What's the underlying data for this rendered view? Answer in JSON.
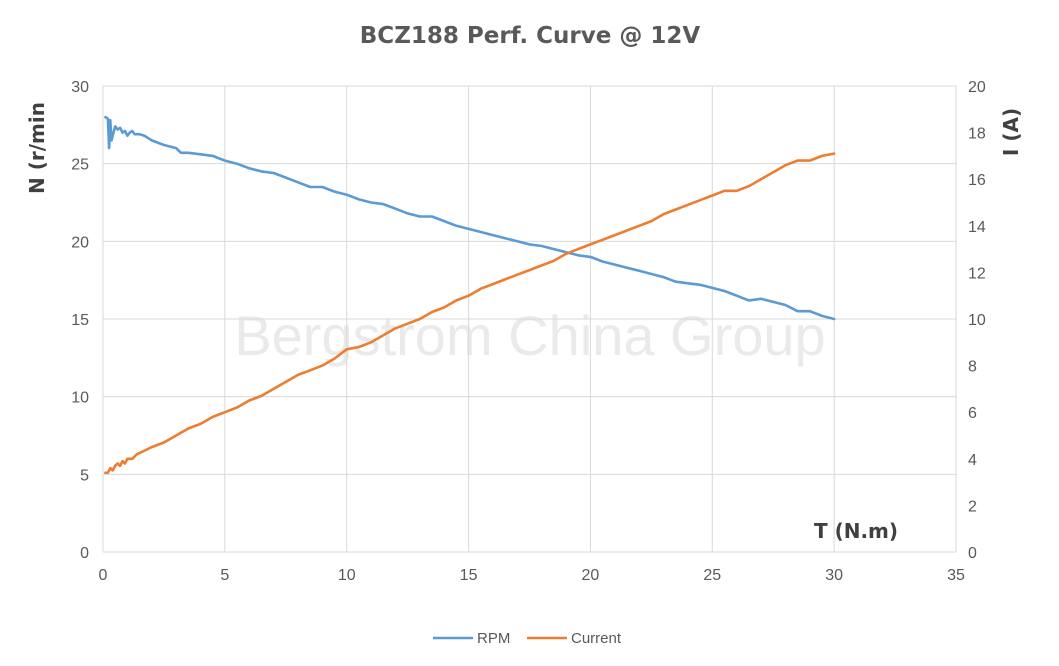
{
  "chart_data": {
    "type": "line",
    "title": "BCZ188 Perf. Curve @ 12V",
    "xlabel": "T (N.m)",
    "ylabel": "N (r/min",
    "y2label": "I (A)",
    "watermark": "Bergstrom China Group",
    "xlim": [
      0,
      35
    ],
    "ylim": [
      0,
      30
    ],
    "y2lim": [
      0,
      20
    ],
    "x_ticks": [
      "0",
      "5",
      "10",
      "15",
      "20",
      "25",
      "30",
      "35"
    ],
    "y_ticks": [
      "0",
      "5",
      "10",
      "15",
      "20",
      "25",
      "30"
    ],
    "y2_ticks": [
      "0",
      "2",
      "4",
      "6",
      "8",
      "10",
      "12",
      "14",
      "16",
      "18",
      "20"
    ],
    "grid": true,
    "legend_position": "bottom",
    "series": [
      {
        "name": "RPM",
        "color": "#5b9bd5",
        "axis": "left",
        "x": [
          0.1,
          0.2,
          0.25,
          0.3,
          0.35,
          0.4,
          0.5,
          0.6,
          0.7,
          0.8,
          0.9,
          1.0,
          1.1,
          1.2,
          1.3,
          1.5,
          1.7,
          2.0,
          2.5,
          3.0,
          3.2,
          3.5,
          4.0,
          4.5,
          5.0,
          5.5,
          6.0,
          6.5,
          7.0,
          7.5,
          8.0,
          8.5,
          9.0,
          9.5,
          10.0,
          10.5,
          11.0,
          11.5,
          12.0,
          12.5,
          13.0,
          13.5,
          14.0,
          14.5,
          15.0,
          15.5,
          16.0,
          16.5,
          17.0,
          17.5,
          18.0,
          18.5,
          19.0,
          19.5,
          20.0,
          20.5,
          21.0,
          21.5,
          22.0,
          22.5,
          23.0,
          23.5,
          24.0,
          24.5,
          25.0,
          25.5,
          26.0,
          26.5,
          27.0,
          27.5,
          28.0,
          28.5,
          29.0,
          29.5,
          30.0
        ],
        "values": [
          28.0,
          27.9,
          26.0,
          27.8,
          26.5,
          26.8,
          27.4,
          27.2,
          27.3,
          27.0,
          27.1,
          26.8,
          27.0,
          27.1,
          26.9,
          26.9,
          26.8,
          26.5,
          26.2,
          26.0,
          25.7,
          25.7,
          25.6,
          25.5,
          25.2,
          25.0,
          24.7,
          24.5,
          24.4,
          24.1,
          23.8,
          23.5,
          23.5,
          23.2,
          23.0,
          22.7,
          22.5,
          22.4,
          22.1,
          21.8,
          21.6,
          21.6,
          21.3,
          21.0,
          20.8,
          20.6,
          20.4,
          20.2,
          20.0,
          19.8,
          19.7,
          19.5,
          19.3,
          19.1,
          19.0,
          18.7,
          18.5,
          18.3,
          18.1,
          17.9,
          17.7,
          17.4,
          17.3,
          17.2,
          17.0,
          16.8,
          16.5,
          16.2,
          16.3,
          16.1,
          15.9,
          15.5,
          15.5,
          15.2,
          15.0
        ]
      },
      {
        "name": "Current",
        "color": "#ed7d31",
        "axis": "right",
        "x": [
          0.1,
          0.2,
          0.3,
          0.4,
          0.5,
          0.6,
          0.7,
          0.8,
          0.9,
          1.0,
          1.2,
          1.4,
          1.6,
          1.8,
          2.0,
          2.5,
          3.0,
          3.5,
          4.0,
          4.5,
          5.0,
          5.5,
          6.0,
          6.5,
          7.0,
          7.5,
          8.0,
          8.5,
          9.0,
          9.5,
          10.0,
          10.5,
          11.0,
          11.5,
          12.0,
          12.5,
          13.0,
          13.5,
          14.0,
          14.5,
          15.0,
          15.5,
          16.0,
          16.5,
          17.0,
          17.5,
          18.0,
          18.5,
          19.0,
          19.5,
          20.0,
          20.5,
          21.0,
          21.5,
          22.0,
          22.5,
          23.0,
          23.5,
          24.0,
          24.5,
          25.0,
          25.5,
          26.0,
          26.5,
          27.0,
          27.5,
          28.0,
          28.5,
          29.0,
          29.5,
          30.0
        ],
        "values": [
          3.4,
          3.4,
          3.6,
          3.5,
          3.7,
          3.8,
          3.7,
          3.9,
          3.8,
          4.0,
          4.0,
          4.2,
          4.3,
          4.4,
          4.5,
          4.7,
          5.0,
          5.3,
          5.5,
          5.8,
          6.0,
          6.2,
          6.5,
          6.7,
          7.0,
          7.3,
          7.6,
          7.8,
          8.0,
          8.3,
          8.7,
          8.8,
          9.0,
          9.3,
          9.6,
          9.8,
          10.0,
          10.3,
          10.5,
          10.8,
          11.0,
          11.3,
          11.5,
          11.7,
          11.9,
          12.1,
          12.3,
          12.5,
          12.8,
          13.0,
          13.2,
          13.4,
          13.6,
          13.8,
          14.0,
          14.2,
          14.5,
          14.7,
          14.9,
          15.1,
          15.3,
          15.5,
          15.5,
          15.7,
          16.0,
          16.3,
          16.6,
          16.8,
          16.8,
          17.0,
          17.1
        ]
      }
    ]
  }
}
